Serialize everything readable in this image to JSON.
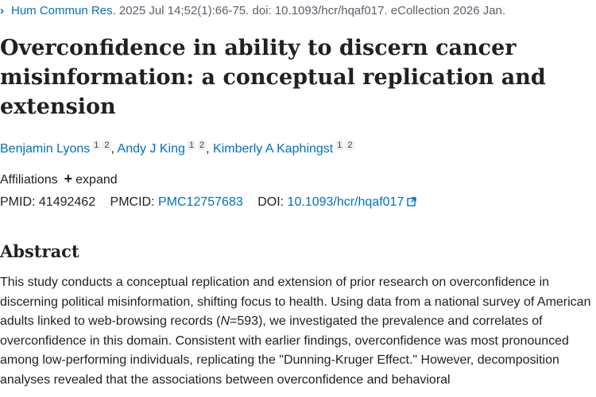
{
  "citation": {
    "journal": "Hum Commun Res.",
    "details": " 2025 Jul 14;52(1):66-75. doi: 10.1093/hcr/hqaf017. eCollection 2026 Jan."
  },
  "article": {
    "title": "Overconfidence in ability to discern cancer misinformation: a conceptual replication and extension"
  },
  "authors": [
    {
      "name": "Benjamin Lyons",
      "affs": [
        "1",
        "2"
      ]
    },
    {
      "name": "Andy J King",
      "affs": [
        "1",
        "2"
      ]
    },
    {
      "name": "Kimberly A Kaphingst",
      "affs": [
        "1",
        "2"
      ]
    }
  ],
  "affiliations": {
    "label": "Affiliations",
    "expand_label": "expand"
  },
  "ids": {
    "pmid_label": "PMID:",
    "pmid": "41492462",
    "pmcid_label": "PMCID:",
    "pmcid": "PMC12757683",
    "doi_label": "DOI:",
    "doi": "10.1093/hcr/hqaf017"
  },
  "abstract": {
    "heading": "Abstract",
    "part1": "This study conducts a conceptual replication and extension of prior research on overconfidence in discerning political misinformation, shifting focus to health. Using data from a national survey of American adults linked to web-browsing records (",
    "n_italic": "N",
    "part2": "=593), we investigated the prevalence and correlates of overconfidence in this domain. Consistent with earlier findings, overconfidence was most pronounced among low-performing individuals, replicating the \"Dunning-Kruger Effect.\" However, decomposition analyses revealed that the associations between overconfidence and behavioral"
  },
  "colors": {
    "link": "#0071bc",
    "text": "#212121",
    "muted": "#5b616b"
  }
}
